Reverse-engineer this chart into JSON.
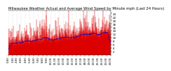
{
  "title": "Milwaukee Weather Actual and Average Wind Speed by Minute mph (Last 24 Hours)",
  "n_points": 1440,
  "ylim": [
    0,
    26
  ],
  "yticks": [
    2,
    4,
    6,
    8,
    10,
    12,
    14,
    16,
    18,
    20,
    22,
    24
  ],
  "bg_color": "#ffffff",
  "bar_color": "#dd0000",
  "avg_color": "#0000cc",
  "grid_color": "#bbbbbb",
  "title_fontsize": 3.8,
  "tick_fontsize": 3.0,
  "avg_linewidth": 0.7,
  "seed": 42,
  "n_xticks": 25,
  "xtick_fontsize": 2.8
}
